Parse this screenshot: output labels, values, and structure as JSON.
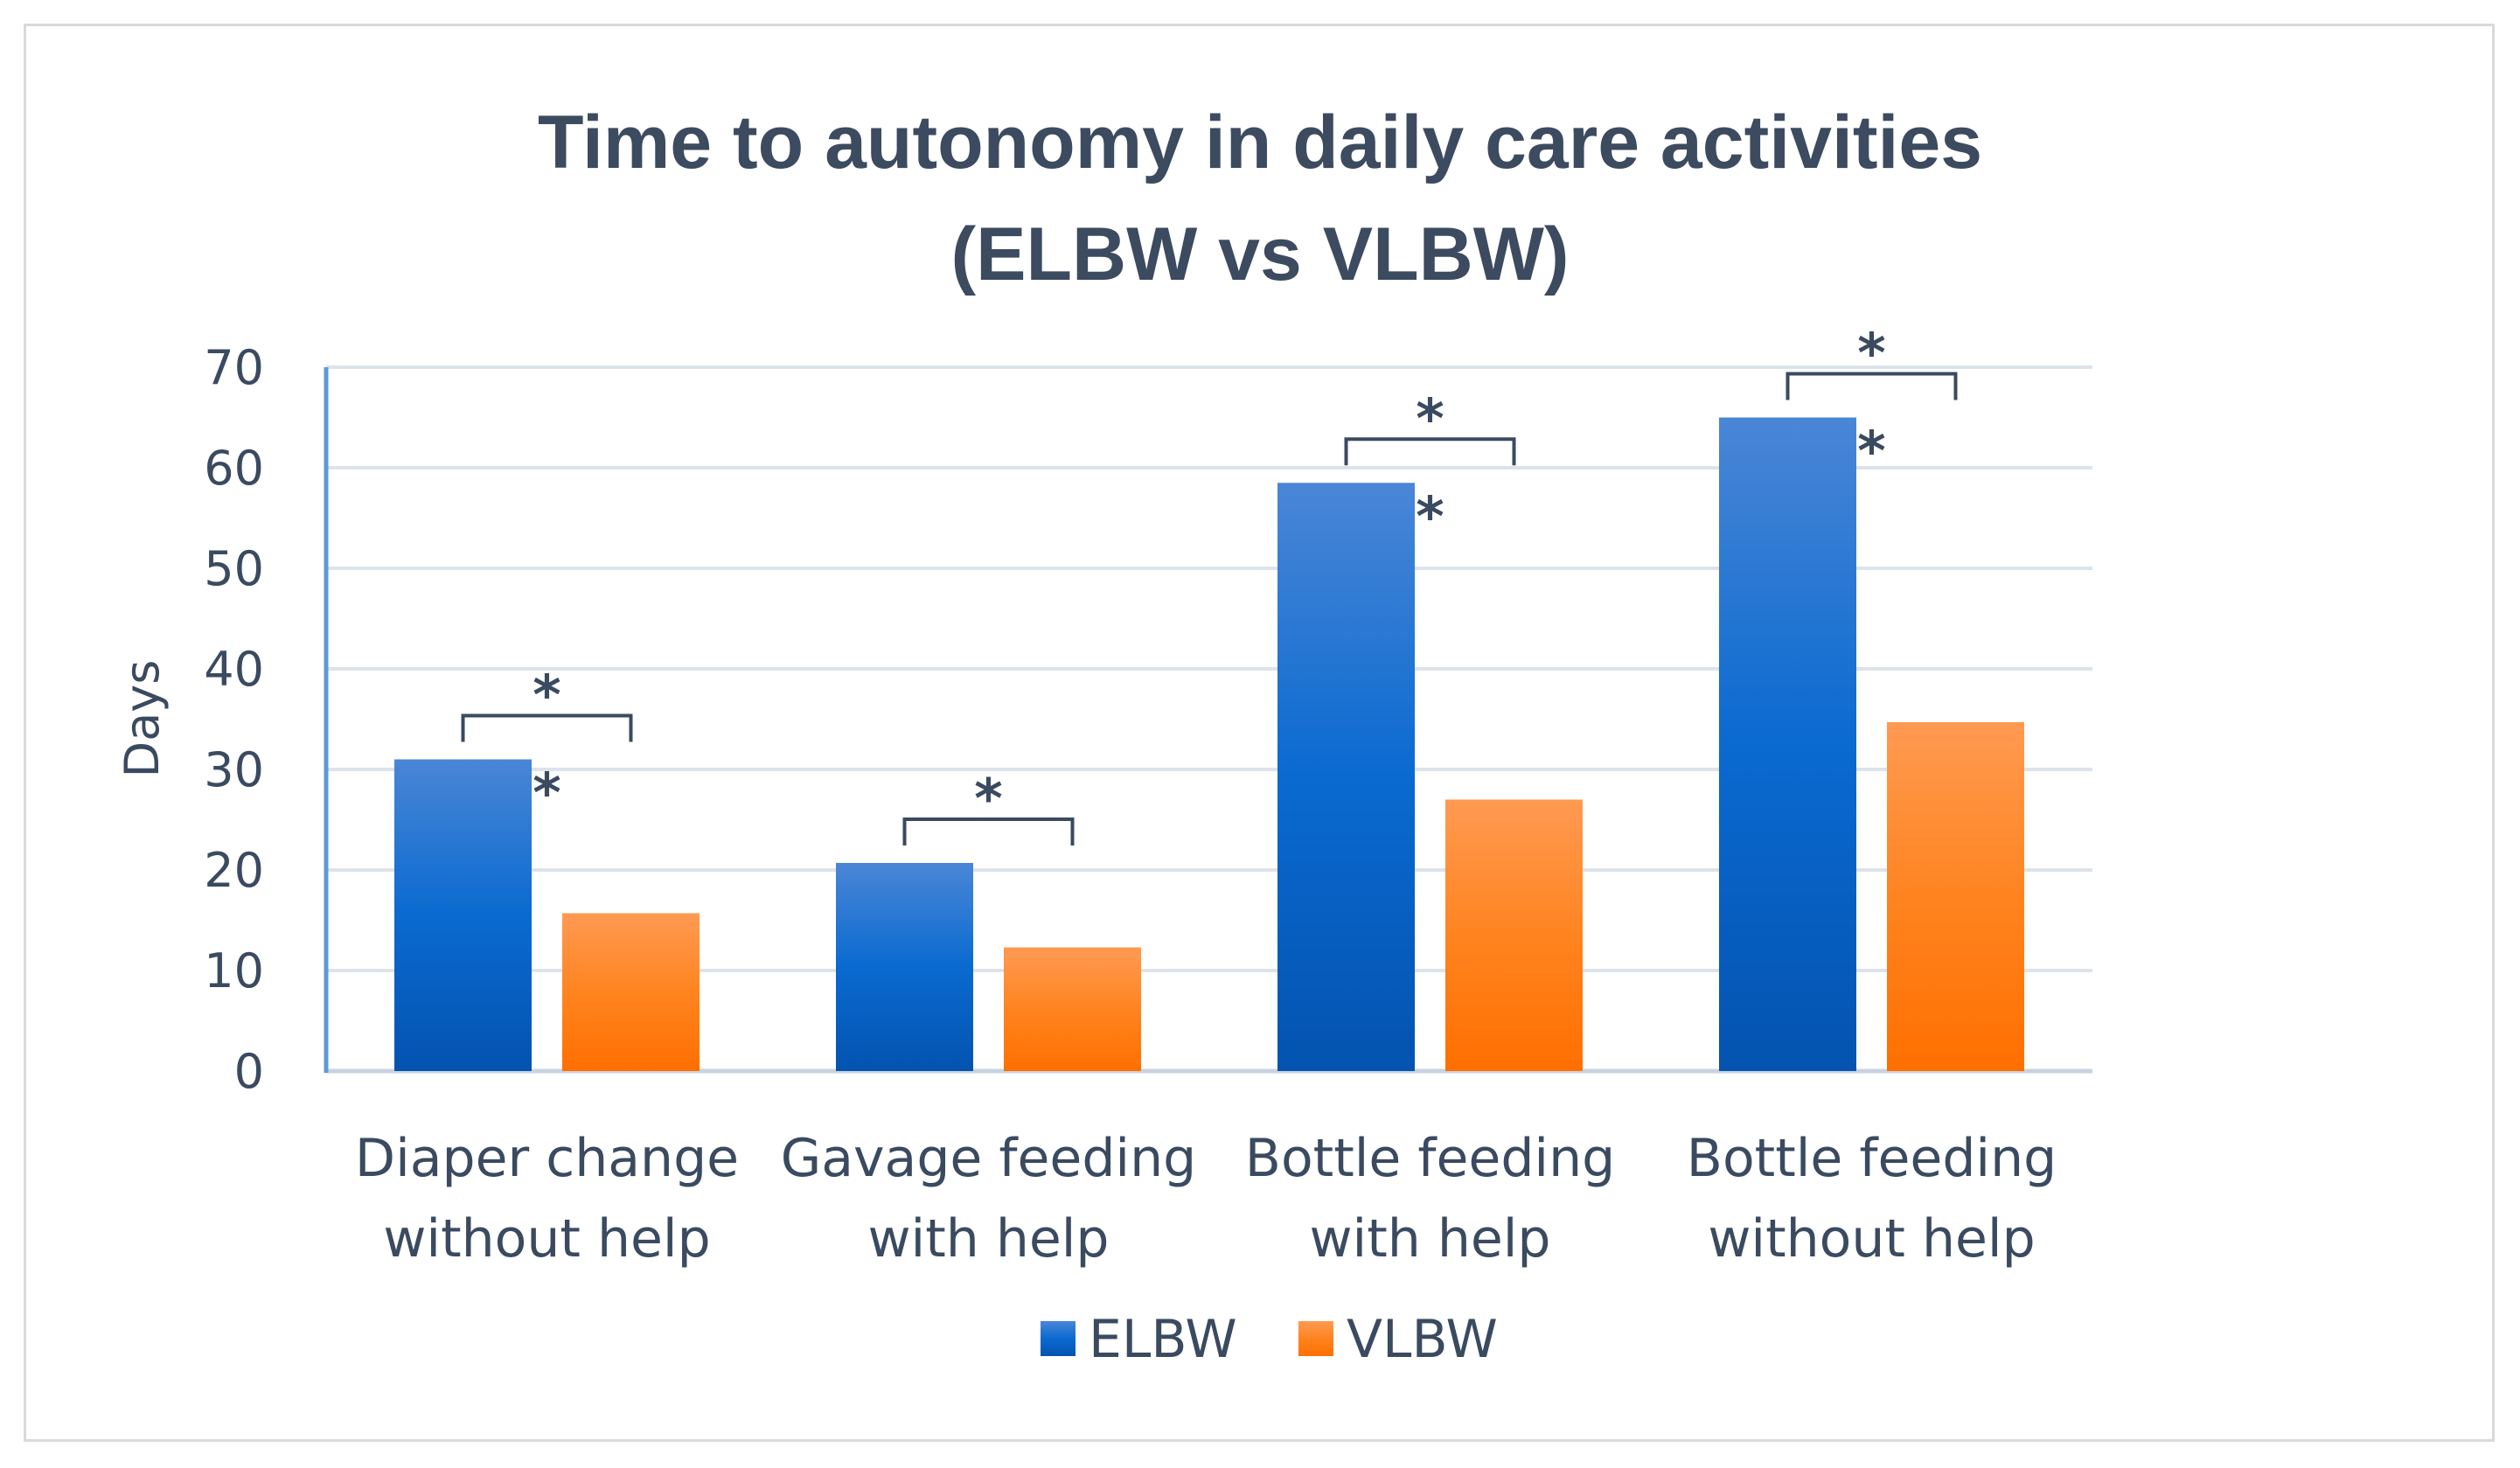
{
  "chart_data": {
    "type": "bar",
    "title_line1": "Time to autonomy in daily care activities",
    "title_line2": "(ELBW vs VLBW)",
    "ylabel": "Days",
    "ylim": [
      0,
      70
    ],
    "yticks": [
      "0",
      "10",
      "20",
      "30",
      "40",
      "50",
      "60",
      "70"
    ],
    "grid": true,
    "legend_position": "bottom-center",
    "categories": [
      {
        "line1": "Diaper change",
        "line2": "without help"
      },
      {
        "line1": "Gavage feeding",
        "line2": "with help"
      },
      {
        "line1": "Bottle feeding",
        "line2": "with help"
      },
      {
        "line1": "Bottle feeding",
        "line2": "without help"
      }
    ],
    "series": [
      {
        "name": "ELBW",
        "color": "#1565c8",
        "values": [
          31,
          20.7,
          58.5,
          65
        ]
      },
      {
        "name": "VLBW",
        "color": "#ff7a1a",
        "values": [
          15.7,
          12.3,
          27,
          34.7
        ]
      }
    ],
    "significance_marker": "*"
  }
}
